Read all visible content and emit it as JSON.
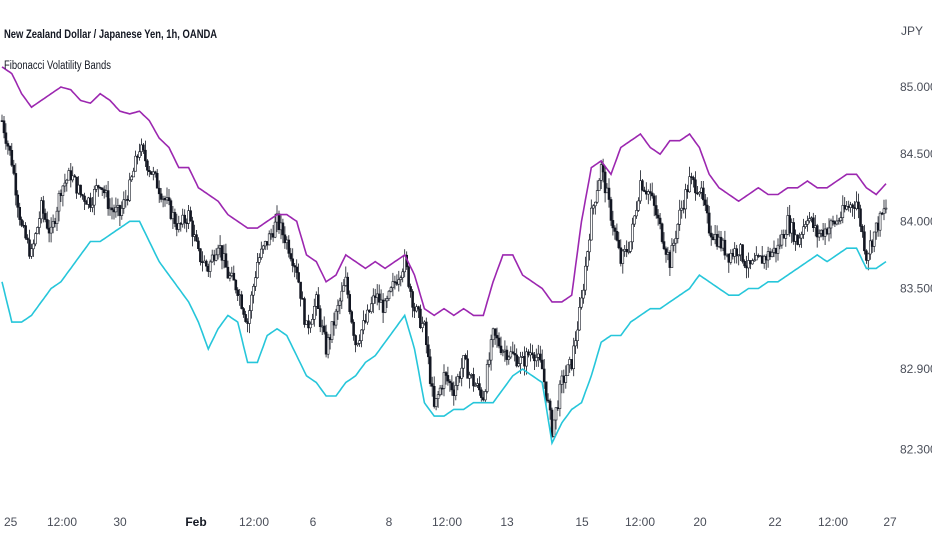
{
  "header": {
    "title": "New Zealand Dollar / Japanese Yen, 1h, OANDA",
    "indicator": "Fibonacci Volatility Bands"
  },
  "chart_data": {
    "type": "candlestick",
    "currency_label": "JPY",
    "y_range": [
      82.0,
      85.35
    ],
    "y_ticks": [
      {
        "label": "85.000",
        "value": 85.0
      },
      {
        "label": "84.500",
        "value": 84.5
      },
      {
        "label": "84.000",
        "value": 84.0
      },
      {
        "label": "83.500",
        "value": 83.5
      },
      {
        "label": "82.900",
        "value": 82.9
      },
      {
        "label": "82.300",
        "value": 82.3
      }
    ],
    "x_ticks": [
      {
        "label": "25",
        "bold": false
      },
      {
        "label": "12:00",
        "bold": false
      },
      {
        "label": "30",
        "bold": false
      },
      {
        "label": "Feb",
        "bold": true
      },
      {
        "label": "12:00",
        "bold": false
      },
      {
        "label": "6",
        "bold": false
      },
      {
        "label": "8",
        "bold": false
      },
      {
        "label": "12:00",
        "bold": false
      },
      {
        "label": "13",
        "bold": false
      },
      {
        "label": "15",
        "bold": false
      },
      {
        "label": "12:00",
        "bold": false
      },
      {
        "label": "20",
        "bold": false
      },
      {
        "label": "22",
        "bold": false
      },
      {
        "label": "12:00",
        "bold": false
      },
      {
        "label": "27",
        "bold": false
      }
    ],
    "colors": {
      "upper_band": "#9c27b0",
      "lower_band": "#26c6da",
      "candles": "#131722"
    },
    "series": [
      {
        "role": "price",
        "values": [
          84.75,
          84.45,
          83.95,
          83.75,
          84.1,
          83.9,
          84.25,
          84.35,
          84.2,
          84.15,
          84.3,
          84.1,
          84.05,
          84.25,
          84.55,
          84.4,
          84.25,
          84.1,
          83.95,
          84.05,
          83.75,
          83.65,
          83.85,
          83.6,
          83.5,
          83.25,
          83.7,
          83.85,
          84.0,
          83.85,
          83.65,
          83.2,
          83.4,
          83.05,
          83.3,
          83.55,
          83.1,
          83.25,
          83.45,
          83.35,
          83.55,
          83.7,
          83.35,
          83.2,
          82.6,
          82.85,
          82.75,
          82.95,
          82.8,
          82.7,
          83.15,
          83.05,
          83.0,
          82.95,
          83.05,
          82.9,
          82.45,
          82.8,
          82.95,
          83.4,
          84.05,
          84.4,
          84.05,
          83.7,
          83.85,
          84.3,
          84.2,
          83.95,
          83.7,
          84.05,
          84.3,
          84.25,
          83.95,
          83.85,
          83.75,
          83.8,
          83.65,
          83.7,
          83.75,
          83.8,
          84.0,
          83.85,
          84.05,
          83.9,
          83.95,
          84.0,
          84.1,
          84.15,
          83.75,
          83.95,
          84.1
        ]
      },
      {
        "role": "upper band",
        "values": [
          85.15,
          85.1,
          84.95,
          84.85,
          84.9,
          84.95,
          85.0,
          84.98,
          84.9,
          84.88,
          84.95,
          84.9,
          84.82,
          84.8,
          84.82,
          84.75,
          84.62,
          84.55,
          84.4,
          84.4,
          84.25,
          84.2,
          84.15,
          84.05,
          84.0,
          83.95,
          83.95,
          84.0,
          84.05,
          84.05,
          84.0,
          83.75,
          83.7,
          83.55,
          83.6,
          83.75,
          83.7,
          83.65,
          83.7,
          83.65,
          83.7,
          83.75,
          83.6,
          83.35,
          83.3,
          83.35,
          83.3,
          83.35,
          83.3,
          83.3,
          83.55,
          83.75,
          83.75,
          83.6,
          83.55,
          83.5,
          83.4,
          83.4,
          83.45,
          84.0,
          84.4,
          84.45,
          84.35,
          84.55,
          84.6,
          84.65,
          84.55,
          84.5,
          84.6,
          84.6,
          84.65,
          84.55,
          84.35,
          84.25,
          84.2,
          84.15,
          84.2,
          84.25,
          84.2,
          84.2,
          84.25,
          84.25,
          84.3,
          84.25,
          84.25,
          84.3,
          84.35,
          84.35,
          84.25,
          84.2,
          84.28
        ]
      },
      {
        "role": "lower band",
        "values": [
          83.55,
          83.25,
          83.25,
          83.3,
          83.4,
          83.5,
          83.55,
          83.65,
          83.75,
          83.85,
          83.85,
          83.9,
          83.95,
          84.0,
          84.0,
          83.85,
          83.7,
          83.6,
          83.5,
          83.4,
          83.25,
          83.05,
          83.2,
          83.3,
          83.25,
          82.95,
          82.95,
          83.15,
          83.2,
          83.15,
          83.0,
          82.85,
          82.8,
          82.7,
          82.7,
          82.8,
          82.85,
          82.95,
          83.0,
          83.1,
          83.2,
          83.3,
          83.05,
          82.65,
          82.55,
          82.55,
          82.6,
          82.6,
          82.65,
          82.65,
          82.65,
          82.75,
          82.85,
          82.9,
          82.85,
          82.8,
          82.35,
          82.5,
          82.6,
          82.65,
          82.85,
          83.1,
          83.15,
          83.15,
          83.25,
          83.3,
          83.35,
          83.35,
          83.4,
          83.45,
          83.5,
          83.6,
          83.55,
          83.5,
          83.45,
          83.45,
          83.5,
          83.5,
          83.55,
          83.55,
          83.6,
          83.65,
          83.7,
          83.75,
          83.7,
          83.75,
          83.8,
          83.8,
          83.65,
          83.65,
          83.7
        ]
      }
    ]
  }
}
